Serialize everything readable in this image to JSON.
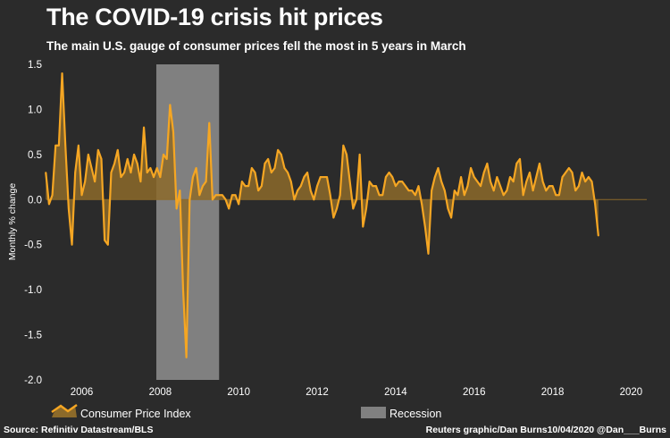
{
  "header": {
    "title": "The COVID-19 crisis hit prices",
    "subtitle": "The main U.S. gauge of consumer prices fell the most in 5 years in March"
  },
  "footer": {
    "source": "Source: Refinitiv Datastream/BLS",
    "credit": "Reuters graphic/Dan Burns10/04/2020 @Dan___Burns"
  },
  "colors": {
    "background": "#2b2b2b",
    "line": "#f5a623",
    "area": "#8c6a2a",
    "recession": "#808080"
  },
  "chart_data": {
    "type": "area",
    "ylabel": "Monthly % change",
    "ylim": [
      -2.0,
      1.5
    ],
    "yticks": [
      "1.5",
      "1.0",
      "0.5",
      "0.0",
      "-0.5",
      "-1.0",
      "-1.5",
      "-2.0"
    ],
    "xticks": [
      "2006",
      "2008",
      "2010",
      "2012",
      "2014",
      "2016",
      "2018",
      "2020"
    ],
    "xlim": [
      2005.1,
      2020.4
    ],
    "recession": [
      2007.9,
      2009.5
    ],
    "legend": {
      "placement": "bottom",
      "series_label": "Consumer Price Index",
      "recession_label": "Recession"
    },
    "series": [
      {
        "name": "Consumer Price Index",
        "x_start": 2005.083,
        "x_step_months": 1,
        "values": [
          0.3,
          -0.05,
          0.05,
          0.6,
          0.6,
          1.4,
          0.6,
          -0.1,
          -0.5,
          0.3,
          0.6,
          0.05,
          0.2,
          0.5,
          0.35,
          0.2,
          0.55,
          0.45,
          -0.45,
          -0.5,
          0.3,
          0.4,
          0.55,
          0.25,
          0.3,
          0.45,
          0.3,
          0.5,
          0.4,
          0.2,
          0.8,
          0.3,
          0.35,
          0.25,
          0.35,
          0.25,
          0.5,
          0.45,
          1.05,
          0.75,
          -0.1,
          0.1,
          -1.0,
          -1.75,
          0.0,
          0.25,
          0.35,
          0.05,
          0.15,
          0.2,
          0.85,
          0.0,
          0.05,
          0.05,
          0.05,
          0.0,
          -0.1,
          0.05,
          0.05,
          -0.05,
          0.2,
          0.15,
          0.15,
          0.35,
          0.3,
          0.1,
          0.15,
          0.4,
          0.45,
          0.3,
          0.35,
          0.55,
          0.5,
          0.35,
          0.3,
          0.2,
          0.0,
          0.1,
          0.15,
          0.25,
          0.3,
          0.1,
          0.0,
          0.15,
          0.25,
          0.25,
          0.25,
          0.05,
          -0.2,
          -0.1,
          0.05,
          0.6,
          0.5,
          0.2,
          -0.1,
          0.0,
          0.5,
          -0.3,
          -0.1,
          0.2,
          0.15,
          0.15,
          0.05,
          0.05,
          0.25,
          0.3,
          0.25,
          0.15,
          0.2,
          0.2,
          0.15,
          0.1,
          0.1,
          0.05,
          0.15,
          -0.05,
          -0.3,
          -0.6,
          0.1,
          0.25,
          0.35,
          0.2,
          0.1,
          -0.1,
          -0.2,
          0.1,
          0.05,
          0.25,
          0.05,
          0.15,
          0.35,
          0.25,
          0.2,
          0.15,
          0.3,
          0.4,
          0.2,
          0.1,
          0.25,
          0.15,
          0.05,
          0.1,
          0.25,
          0.2,
          0.4,
          0.45,
          0.05,
          0.2,
          0.3,
          0.1,
          0.25,
          0.4,
          0.2,
          0.1,
          0.15,
          0.15,
          0.05,
          0.05,
          0.25,
          0.3,
          0.35,
          0.3,
          0.1,
          0.15,
          0.3,
          0.2,
          0.25,
          0.2,
          -0.05,
          -0.4
        ]
      }
    ]
  }
}
